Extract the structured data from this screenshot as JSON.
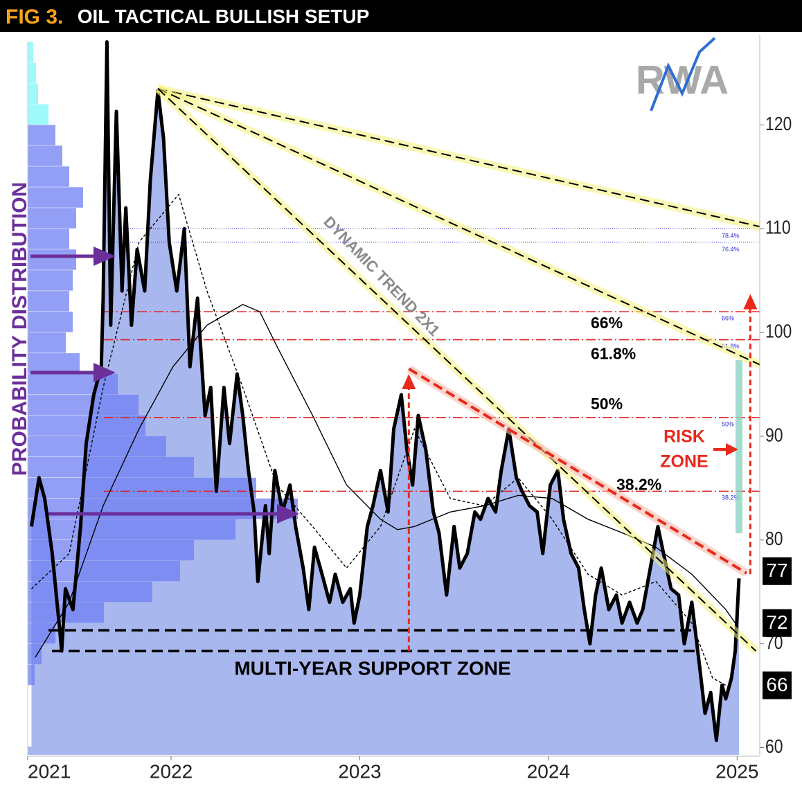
{
  "chart_data": {
    "type": "line",
    "fig_label": "FIG 3.",
    "title": "OIL TACTICAL BULLISH SETUP",
    "logo": "RWA",
    "side_label": "PROBABILITY DISTRIBUTION",
    "xlim": [
      2021.24,
      2025.12
    ],
    "xticks": [
      {
        "value": 2021.24,
        "label": "2021"
      },
      2022,
      2023,
      2024,
      2025
    ],
    "ylim": [
      59.3,
      128.7
    ],
    "yticks": [
      60,
      70,
      80,
      90,
      100,
      110,
      120
    ],
    "series": [
      {
        "color": "#000000",
        "style": "price",
        "x": [
          2021.26,
          2021.3,
          2021.33,
          2021.37,
          2021.41,
          2021.42,
          2021.44,
          2021.48,
          2021.52,
          2021.55,
          2021.59,
          2021.63,
          2021.64,
          2021.66,
          2021.68,
          2021.71,
          2021.74,
          2021.76,
          2021.79,
          2021.82,
          2021.86,
          2021.89,
          2021.93,
          2021.96,
          2021.99,
          2022.03,
          2022.07,
          2022.1,
          2022.14,
          2022.18,
          2022.21,
          2022.24,
          2022.28,
          2022.31,
          2022.35,
          2022.38,
          2022.41,
          2022.44,
          2022.46,
          2022.5,
          2022.52,
          2022.55,
          2022.59,
          2022.63,
          2022.66,
          2022.7,
          2022.73,
          2022.76,
          2022.8,
          2022.84,
          2022.87,
          2022.91,
          2022.95,
          2022.97,
          2023.0,
          2023.04,
          2023.07,
          2023.11,
          2023.15,
          2023.18,
          2023.22,
          2023.25,
          2023.28,
          2023.31,
          2023.35,
          2023.39,
          2023.42,
          2023.46,
          2023.5,
          2023.53,
          2023.57,
          2023.61,
          2023.64,
          2023.68,
          2023.72,
          2023.75,
          2023.79,
          2023.83,
          2023.86,
          2023.9,
          2023.94,
          2023.97,
          2024.01,
          2024.05,
          2024.08,
          2024.12,
          2024.16,
          2024.19,
          2024.22,
          2024.25,
          2024.28,
          2024.32,
          2024.36,
          2024.39,
          2024.43,
          2024.47,
          2024.5,
          2024.54,
          2024.58,
          2024.61,
          2024.65,
          2024.69,
          2024.72,
          2024.76,
          2024.8,
          2024.83,
          2024.86,
          2024.89,
          2024.92,
          2024.94,
          2024.97,
          2024.99,
          2025.01
        ],
        "values": [
          81.3,
          86,
          84,
          78.7,
          71.3,
          69.3,
          75.3,
          73.3,
          81.3,
          89.3,
          94,
          96.7,
          103.3,
          128,
          100.7,
          121.3,
          104,
          112,
          100.7,
          108,
          104,
          114.7,
          123.3,
          118.7,
          108.7,
          104,
          110,
          96.7,
          103.3,
          92,
          94.7,
          84.7,
          94.7,
          89.3,
          96,
          92,
          86.7,
          82.7,
          76,
          83.3,
          78.7,
          86.7,
          82.7,
          85.3,
          81.3,
          77.3,
          73.3,
          79.3,
          76.7,
          74,
          76.7,
          74,
          75.3,
          72,
          74.7,
          81.3,
          83.3,
          86.7,
          82.7,
          90.7,
          94,
          88.7,
          85.3,
          92,
          88.7,
          82.7,
          80.7,
          74.7,
          81.3,
          77.3,
          78.7,
          82.7,
          82,
          84,
          82.7,
          86.7,
          90.7,
          86,
          84.7,
          83.3,
          82.7,
          78.7,
          85.3,
          86.7,
          82,
          78.7,
          77.3,
          73.3,
          70,
          74.7,
          77.3,
          73.3,
          74.7,
          72,
          74,
          72,
          73.3,
          77.3,
          81.3,
          78.7,
          75.3,
          74.7,
          70,
          74,
          68,
          63.3,
          65.3,
          60.7,
          66,
          64.7,
          66.7,
          69.3,
          76.3
        ]
      },
      {
        "color": "#000000",
        "style": "slow",
        "x": [
          2021.28,
          2021.46,
          2021.64,
          2021.83,
          2022.01,
          2022.19,
          2022.38,
          2022.47,
          2022.56,
          2022.75,
          2022.93,
          2023.11,
          2023.2,
          2023.29,
          2023.48,
          2023.66,
          2023.84,
          2024.02,
          2024.21,
          2024.39,
          2024.57,
          2024.76,
          2024.94,
          2024.99
        ],
        "values": [
          68.7,
          74,
          83.3,
          90.7,
          96.7,
          100.7,
          102.7,
          102,
          98.7,
          92,
          85.3,
          82,
          81,
          81.3,
          82.7,
          83.3,
          84.3,
          84,
          82,
          80.7,
          79.3,
          76.7,
          73.3,
          72
        ]
      },
      {
        "color": "#000000",
        "style": "fast",
        "x": [
          2021.26,
          2021.46,
          2021.64,
          2021.83,
          2022.04,
          2022.19,
          2022.38,
          2022.56,
          2022.75,
          2022.93,
          2023.11,
          2023.29,
          2023.48,
          2023.66,
          2023.84,
          2024.02,
          2024.21,
          2024.39,
          2024.57,
          2024.76,
          2024.87,
          2024.94
        ],
        "values": [
          75.3,
          78.7,
          94.7,
          108.7,
          113.3,
          104,
          94.7,
          85.3,
          81.3,
          77.3,
          81.3,
          90.7,
          84,
          83.3,
          86,
          82,
          76.7,
          74.7,
          76,
          72,
          66.7,
          66
        ]
      }
    ],
    "distribution": {
      "bins": [
        66,
        68,
        70,
        72,
        74,
        76,
        78,
        80,
        82,
        84,
        86,
        88,
        90,
        92,
        94,
        96,
        98,
        100,
        102,
        104,
        106,
        108,
        110,
        112,
        114,
        116,
        118,
        120,
        122,
        124,
        126,
        128
      ],
      "volumes": [
        10,
        20,
        40,
        110,
        180,
        220,
        240,
        300,
        390,
        330,
        240,
        200,
        170,
        160,
        130,
        75,
        55,
        65,
        60,
        65,
        70,
        60,
        70,
        80,
        60,
        50,
        40,
        30,
        15,
        12,
        8
      ],
      "color": "#6f7ff2",
      "top_color": "#7ff6f8"
    },
    "area_color": "#a9b7ef",
    "trendlines": [
      {
        "x": [
          2021.93,
          2025.12
        ],
        "y": [
          123.5,
          110.2
        ]
      },
      {
        "x": [
          2021.93,
          2025.12
        ],
        "y": [
          123.5,
          96.9
        ]
      },
      {
        "x": [
          2021.93,
          2025.1
        ],
        "y": [
          123.5,
          69.3
        ]
      }
    ],
    "trend_label": "DYNAMIC TREND 2X1",
    "resistance": {
      "x": [
        2023.26,
        2025.05
      ],
      "y": [
        96.5,
        76.8
      ],
      "color": "#e8291c"
    },
    "fib_levels": [
      {
        "value": 102,
        "label": "66%"
      },
      {
        "value": 99.3,
        "label": "61.8%"
      },
      {
        "value": 91.8,
        "label": "50%"
      },
      {
        "value": 84.7,
        "label": "38.2%"
      }
    ],
    "blue_levels": [
      {
        "value": 110,
        "label": "78.4%"
      },
      {
        "value": 108.7,
        "label": "76.4%"
      }
    ],
    "support_levels": [
      71.3,
      69.3
    ],
    "support_label": "MULTI-YEAR SUPPORT ZONE",
    "arrows": [
      {
        "x": 2023.26,
        "from": 69.3,
        "to": 96
      },
      {
        "x": 2025.07,
        "from": 76.7,
        "to": 103.7
      }
    ],
    "risk_zone": [
      "RISK",
      "ZONE"
    ],
    "price_labels": [
      77,
      72,
      66
    ]
  }
}
